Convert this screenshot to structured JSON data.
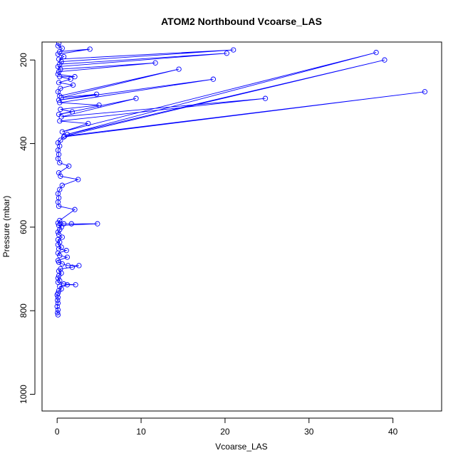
{
  "chart_data": {
    "type": "scatter",
    "title": "ATOM2 Northbound Vcoarse_LAS",
    "xlabel": "Vcoarse_LAS",
    "ylabel": "Pressure (mbar)",
    "xlim": [
      -1.8,
      45.8
    ],
    "ylim": [
      1040,
      157
    ],
    "y_reversed": true,
    "x_ticks": [
      0,
      10,
      20,
      30,
      40
    ],
    "y_ticks": [
      200,
      400,
      600,
      800,
      1000
    ],
    "grid": false,
    "legend": "none",
    "marker": "open-circle",
    "connected": true,
    "series": [
      {
        "color": "#0000ff",
        "points": [
          [
            0.1,
            810
          ],
          [
            0.05,
            805
          ],
          [
            0.1,
            798
          ],
          [
            0.0,
            790
          ],
          [
            0.1,
            782
          ],
          [
            0.05,
            775
          ],
          [
            0.1,
            768
          ],
          [
            0.0,
            762
          ],
          [
            0.1,
            758
          ],
          [
            0.2,
            752
          ],
          [
            0.5,
            748
          ],
          [
            0.3,
            742
          ],
          [
            1.2,
            738
          ],
          [
            2.2,
            738
          ],
          [
            0.8,
            736
          ],
          [
            0.1,
            732
          ],
          [
            0.3,
            728
          ],
          [
            0.1,
            722
          ],
          [
            0.2,
            716
          ],
          [
            0.5,
            710
          ],
          [
            0.2,
            705
          ],
          [
            0.4,
            700
          ],
          [
            1.8,
            696
          ],
          [
            2.6,
            692
          ],
          [
            1.3,
            692
          ],
          [
            0.6,
            688
          ],
          [
            0.2,
            684
          ],
          [
            0.1,
            680
          ],
          [
            1.2,
            672
          ],
          [
            0.3,
            668
          ],
          [
            0.1,
            662
          ],
          [
            1.1,
            656
          ],
          [
            0.2,
            652
          ],
          [
            0.5,
            648
          ],
          [
            0.1,
            642
          ],
          [
            0.3,
            636
          ],
          [
            0.1,
            630
          ],
          [
            0.6,
            624
          ],
          [
            0.2,
            618
          ],
          [
            0.1,
            612
          ],
          [
            0.3,
            606
          ],
          [
            0.5,
            600
          ],
          [
            0.2,
            596
          ],
          [
            4.8,
            592
          ],
          [
            1.7,
            592
          ],
          [
            0.8,
            592
          ],
          [
            0.4,
            592
          ],
          [
            0.1,
            590
          ],
          [
            0.3,
            584
          ],
          [
            2.1,
            558
          ],
          [
            0.2,
            550
          ],
          [
            0.1,
            540
          ],
          [
            0.2,
            530
          ],
          [
            0.1,
            520
          ],
          [
            0.3,
            510
          ],
          [
            0.6,
            500
          ],
          [
            2.5,
            486
          ],
          [
            0.4,
            478
          ],
          [
            0.2,
            470
          ],
          [
            1.4,
            454
          ],
          [
            0.3,
            446
          ],
          [
            0.1,
            436
          ],
          [
            0.2,
            426
          ],
          [
            0.1,
            416
          ],
          [
            0.3,
            406
          ],
          [
            0.1,
            398
          ],
          [
            0.4,
            392
          ],
          [
            0.8,
            384
          ],
          [
            43.8,
            276
          ],
          [
            0.9,
            382
          ],
          [
            39.0,
            200
          ],
          [
            1.2,
            378
          ],
          [
            38.0,
            182
          ],
          [
            0.6,
            372
          ],
          [
            3.7,
            352
          ],
          [
            0.3,
            346
          ],
          [
            24.8,
            292
          ],
          [
            0.5,
            336
          ],
          [
            9.4,
            292
          ],
          [
            0.2,
            330
          ],
          [
            1.8,
            324
          ],
          [
            0.4,
            318
          ],
          [
            5.0,
            308
          ],
          [
            0.3,
            302
          ],
          [
            18.6,
            246
          ],
          [
            0.2,
            296
          ],
          [
            4.7,
            282
          ],
          [
            0.5,
            290
          ],
          [
            14.5,
            222
          ],
          [
            0.3,
            286
          ],
          [
            0.1,
            276
          ],
          [
            0.4,
            268
          ],
          [
            1.9,
            260
          ],
          [
            0.2,
            254
          ],
          [
            1.6,
            246
          ],
          [
            0.3,
            240
          ],
          [
            2.1,
            240
          ],
          [
            0.1,
            234
          ],
          [
            0.2,
            228
          ],
          [
            11.7,
            207
          ],
          [
            0.4,
            222
          ],
          [
            0.1,
            216
          ],
          [
            20.2,
            184
          ],
          [
            0.3,
            210
          ],
          [
            0.5,
            204
          ],
          [
            21.0,
            176
          ],
          [
            0.2,
            198
          ],
          [
            0.8,
            192
          ],
          [
            0.1,
            186
          ],
          [
            3.9,
            174
          ],
          [
            0.3,
            180
          ],
          [
            0.6,
            172
          ],
          [
            0.1,
            166
          ],
          [
            0.2,
            160
          ]
        ]
      }
    ]
  }
}
